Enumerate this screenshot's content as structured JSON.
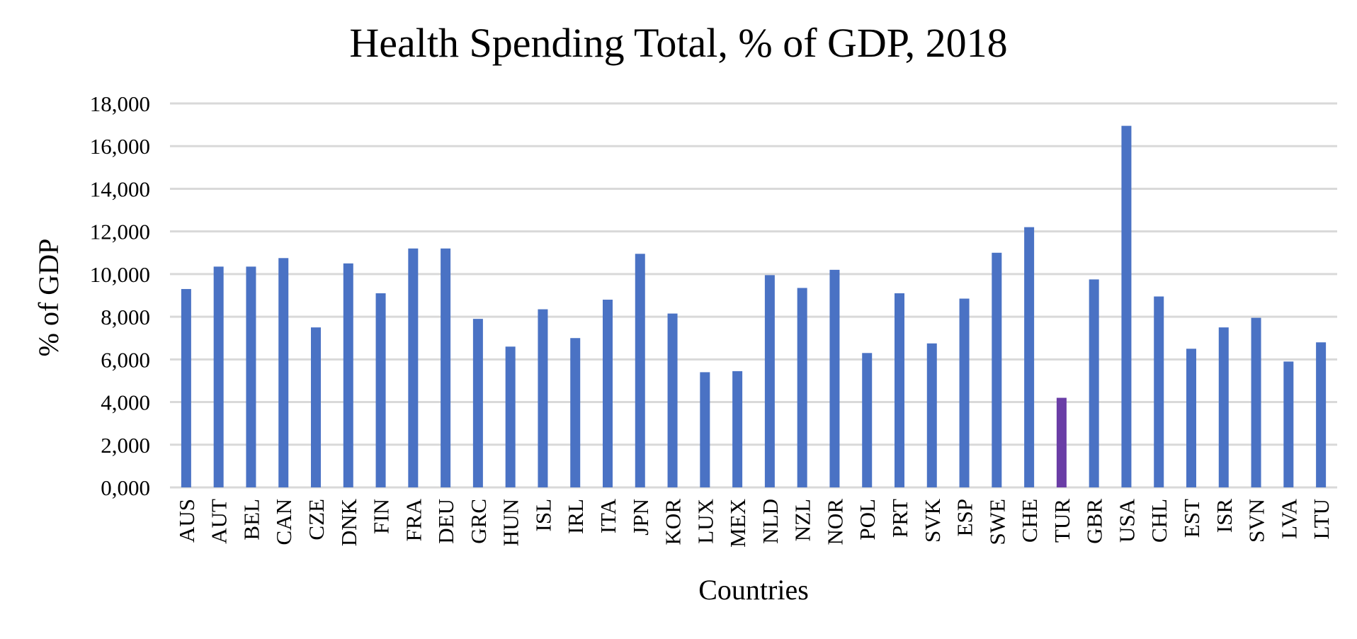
{
  "chart_data": {
    "type": "bar",
    "title": "Health Spending Total, % of GDP, 2018",
    "xlabel": "Countries",
    "ylabel": "% of GDP",
    "ylim": [
      0,
      18000
    ],
    "yticks": [
      0,
      2000,
      4000,
      6000,
      8000,
      10000,
      12000,
      14000,
      16000,
      18000
    ],
    "ytick_labels": [
      "0,000",
      "2,000",
      "4,000",
      "6,000",
      "8,000",
      "10,000",
      "12,000",
      "14,000",
      "16,000",
      "18,000"
    ],
    "grid": true,
    "colors": {
      "default": "#4a72c4",
      "highlight": "#6a3da6"
    },
    "highlight": "TUR",
    "categories": [
      "AUS",
      "AUT",
      "BEL",
      "CAN",
      "CZE",
      "DNK",
      "FIN",
      "FRA",
      "DEU",
      "GRC",
      "HUN",
      "ISL",
      "IRL",
      "ITA",
      "JPN",
      "KOR",
      "LUX",
      "MEX",
      "NLD",
      "NZL",
      "NOR",
      "POL",
      "PRT",
      "SVK",
      "ESP",
      "SWE",
      "CHE",
      "TUR",
      "GBR",
      "USA",
      "CHL",
      "EST",
      "ISR",
      "SVN",
      "LVA",
      "LTU"
    ],
    "values": [
      9300,
      10350,
      10350,
      10750,
      7500,
      10500,
      9100,
      11200,
      11200,
      7900,
      6600,
      8350,
      7000,
      8800,
      10950,
      8150,
      5400,
      5450,
      9950,
      9350,
      10200,
      6300,
      9100,
      6750,
      8850,
      11000,
      12200,
      4200,
      9750,
      16950,
      8950,
      6500,
      7500,
      7950,
      5900,
      6800
    ]
  }
}
